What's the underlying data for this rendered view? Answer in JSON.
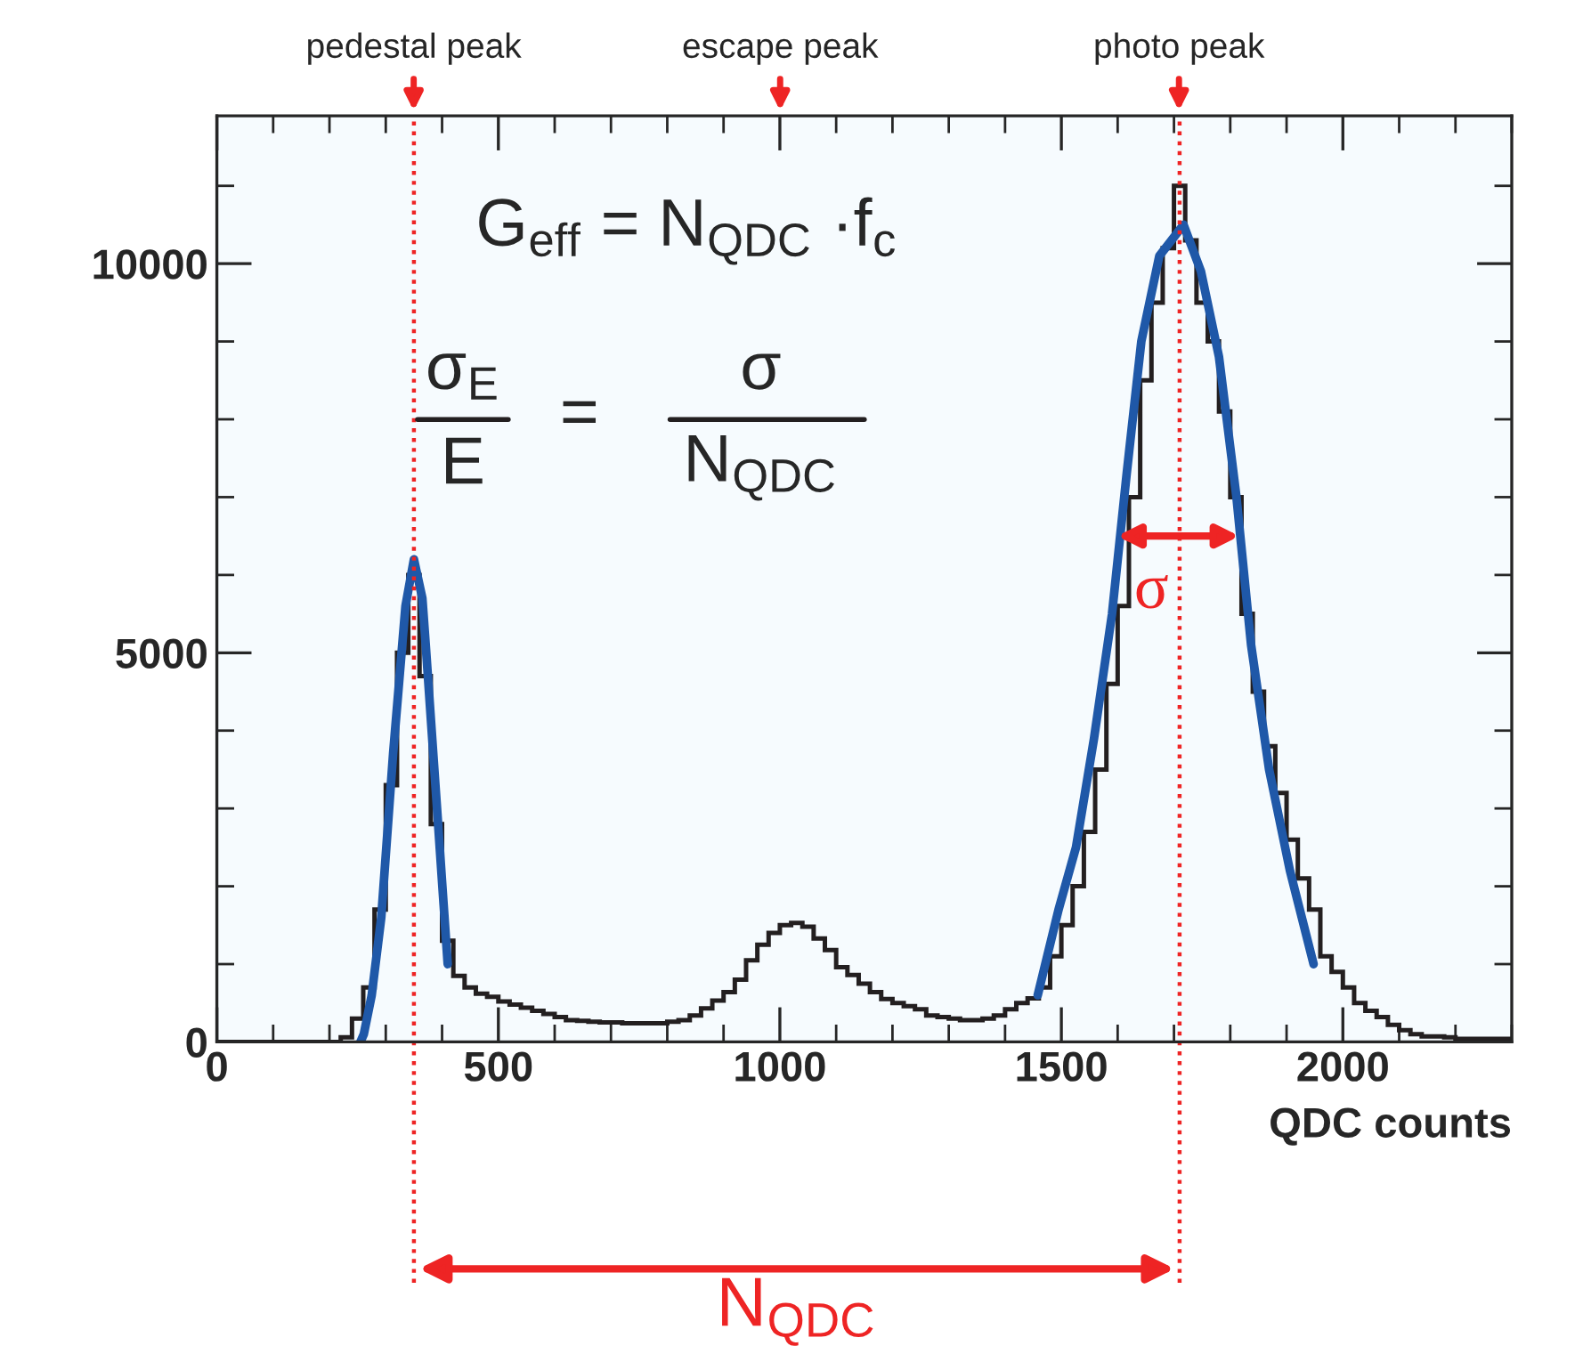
{
  "chart_data": {
    "type": "histogram",
    "xlabel": "QDC counts",
    "xlim": [
      0,
      2300
    ],
    "ylim": [
      0,
      11900
    ],
    "xticks": [
      0,
      500,
      1000,
      1500,
      2000
    ],
    "yticks": [
      0,
      5000,
      10000
    ],
    "grid": false,
    "series": [
      {
        "color": "#231f20",
        "bins": [
          0,
          20,
          40,
          60,
          80,
          100,
          120,
          140,
          160,
          180,
          200,
          220,
          240,
          260,
          280,
          300,
          320,
          340,
          360,
          380,
          400,
          420,
          440,
          460,
          480,
          500,
          520,
          540,
          560,
          580,
          600,
          620,
          640,
          660,
          680,
          700,
          720,
          740,
          760,
          780,
          800,
          820,
          840,
          860,
          880,
          900,
          920,
          940,
          960,
          980,
          1000,
          1020,
          1040,
          1060,
          1080,
          1100,
          1120,
          1140,
          1160,
          1180,
          1200,
          1220,
          1240,
          1260,
          1280,
          1300,
          1320,
          1340,
          1360,
          1380,
          1400,
          1420,
          1440,
          1460,
          1480,
          1500,
          1520,
          1540,
          1560,
          1580,
          1600,
          1620,
          1640,
          1660,
          1680,
          1700,
          1720,
          1740,
          1760,
          1780,
          1800,
          1820,
          1840,
          1860,
          1880,
          1900,
          1920,
          1940,
          1960,
          1980,
          2000,
          2020,
          2040,
          2060,
          2080,
          2100,
          2120,
          2140,
          2160,
          2180,
          2200,
          2220,
          2240,
          2260,
          2280,
          2300
        ],
        "values": [
          0,
          0,
          0,
          0,
          0,
          0,
          0,
          0,
          0,
          0,
          0,
          60,
          300,
          700,
          1700,
          3300,
          5000,
          6000,
          4700,
          2800,
          1300,
          850,
          700,
          620,
          580,
          520,
          480,
          440,
          400,
          360,
          320,
          280,
          270,
          260,
          250,
          250,
          240,
          240,
          240,
          240,
          260,
          280,
          340,
          430,
          530,
          640,
          800,
          1050,
          1250,
          1400,
          1500,
          1530,
          1480,
          1330,
          1180,
          960,
          860,
          750,
          640,
          550,
          500,
          460,
          420,
          340,
          320,
          300,
          280,
          280,
          300,
          340,
          420,
          500,
          560,
          700,
          1100,
          1500,
          2000,
          2700,
          3500,
          4600,
          5600,
          7000,
          8500,
          9500,
          10200,
          11000,
          10300,
          9500,
          9000,
          8100,
          7000,
          5500,
          4500,
          3800,
          3200,
          2600,
          2100,
          1700,
          1100,
          900,
          700,
          500,
          400,
          320,
          220,
          150,
          100,
          70,
          70,
          60,
          40,
          40,
          40,
          40,
          40
        ]
      },
      {
        "type": "line",
        "color": "#1f58a8",
        "x": [
          255,
          261,
          275,
          292,
          313,
          335,
          350,
          365,
          371,
          392,
          410
        ],
        "values": [
          0,
          100,
          600,
          1600,
          3700,
          5600,
          6200,
          5700,
          5100,
          2900,
          1000
        ]
      },
      {
        "type": "line",
        "color": "#1f58a8",
        "x": [
          1458,
          1495,
          1526,
          1558,
          1590,
          1616,
          1642,
          1674,
          1717,
          1748,
          1780,
          1811,
          1837,
          1869,
          1906,
          1948
        ],
        "values": [
          600,
          1700,
          2500,
          3900,
          5500,
          7300,
          9000,
          10100,
          10500,
          9900,
          8800,
          7000,
          5100,
          3500,
          2200,
          1000
        ]
      }
    ],
    "ref_lines": [
      {
        "axis": "x",
        "value": 350,
        "color": "#ee2424",
        "line_style": "dotted"
      },
      {
        "axis": "x",
        "value": 1710,
        "color": "#ee2424",
        "line_style": "dotted"
      }
    ],
    "annotations": [
      "pedestal peak",
      "escape peak",
      "photo peak",
      "G$_{eff}$ = N$_{QDC}$ ·f$_{c}$",
      "σ$_{E}$",
      "E",
      "=",
      "σ",
      "N$_{QDC}$",
      "σ",
      "N$_{QDC}$"
    ]
  }
}
